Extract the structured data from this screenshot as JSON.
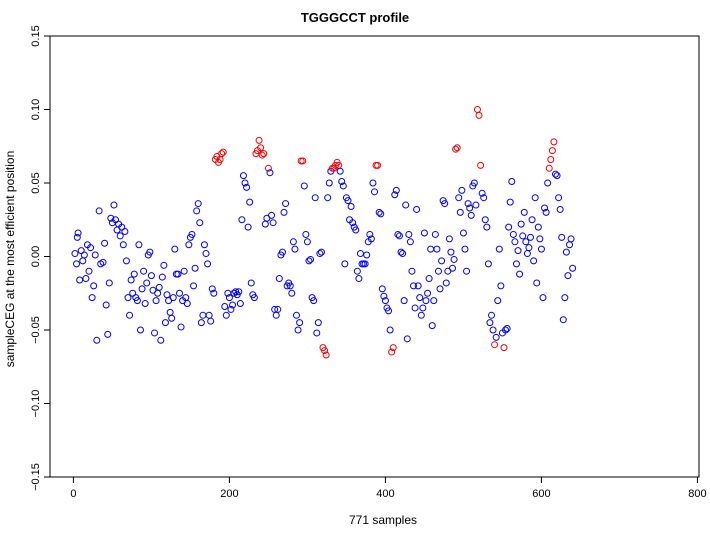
{
  "chart_data": {
    "type": "scatter",
    "title": "TGGGCCT profile",
    "xlabel": "771 samples",
    "ylabel": "sampleCEG at the most efficient position",
    "xlim": [
      -30,
      802
    ],
    "ylim": [
      -0.15,
      0.15
    ],
    "xticks": [
      "0",
      "200",
      "400",
      "600",
      "800"
    ],
    "yticks": [
      "-0.15",
      "-0.10",
      "-0.05",
      "0.00",
      "0.05",
      "0.10",
      "0.15"
    ],
    "xtick_values": [
      0,
      200,
      400,
      600,
      800
    ],
    "ytick_values": [
      -0.15,
      -0.1,
      -0.05,
      0,
      0.05,
      0.1,
      0.15
    ],
    "grid": false,
    "marker": "open-circle",
    "colors": {
      "normal": "#0000ff",
      "extreme": "#ff0000"
    },
    "extreme_threshold": 0.06,
    "n_samples": 771,
    "points": [
      [
        2,
        0.002
      ],
      [
        4,
        -0.005
      ],
      [
        5,
        0.013
      ],
      [
        6,
        0.016
      ],
      [
        8,
        -0.016
      ],
      [
        10,
        0.004
      ],
      [
        12,
        -0.003
      ],
      [
        14,
        0.001
      ],
      [
        16,
        -0.015
      ],
      [
        18,
        0.008
      ],
      [
        20,
        -0.01
      ],
      [
        22,
        0.006
      ],
      [
        24,
        -0.028
      ],
      [
        26,
        -0.02
      ],
      [
        28,
        0.001
      ],
      [
        30,
        -0.057
      ],
      [
        33,
        0.031
      ],
      [
        35,
        -0.005
      ],
      [
        38,
        -0.004
      ],
      [
        40,
        0.009
      ],
      [
        42,
        -0.033
      ],
      [
        44,
        -0.053
      ],
      [
        46,
        -0.018
      ],
      [
        48,
        0.026
      ],
      [
        50,
        0.023
      ],
      [
        52,
        0.035
      ],
      [
        54,
        0.025
      ],
      [
        56,
        0.018
      ],
      [
        58,
        0.022
      ],
      [
        60,
        0.014
      ],
      [
        62,
        0.02
      ],
      [
        64,
        0.008
      ],
      [
        66,
        0.017
      ],
      [
        68,
        -0.003
      ],
      [
        70,
        -0.028
      ],
      [
        72,
        -0.04
      ],
      [
        74,
        -0.016
      ],
      [
        76,
        -0.025
      ],
      [
        78,
        -0.012
      ],
      [
        80,
        -0.028
      ],
      [
        82,
        -0.03
      ],
      [
        84,
        0.008
      ],
      [
        86,
        -0.05
      ],
      [
        88,
        -0.022
      ],
      [
        90,
        -0.01
      ],
      [
        92,
        -0.032
      ],
      [
        94,
        -0.018
      ],
      [
        96,
        0.001
      ],
      [
        98,
        0.003
      ],
      [
        100,
        -0.013
      ],
      [
        102,
        -0.023
      ],
      [
        104,
        -0.052
      ],
      [
        106,
        -0.03
      ],
      [
        108,
        -0.025
      ],
      [
        110,
        -0.021
      ],
      [
        112,
        -0.057
      ],
      [
        114,
        -0.014
      ],
      [
        116,
        -0.006
      ],
      [
        118,
        -0.045
      ],
      [
        120,
        -0.026
      ],
      [
        122,
        -0.03
      ],
      [
        124,
        -0.038
      ],
      [
        126,
        -0.042
      ],
      [
        128,
        -0.028
      ],
      [
        130,
        0.005
      ],
      [
        132,
        -0.012
      ],
      [
        134,
        -0.012
      ],
      [
        136,
        -0.025
      ],
      [
        138,
        -0.048
      ],
      [
        140,
        -0.03
      ],
      [
        142,
        -0.01
      ],
      [
        144,
        -0.028
      ],
      [
        146,
        -0.032
      ],
      [
        148,
        0.008
      ],
      [
        150,
        0.013
      ],
      [
        152,
        0.015
      ],
      [
        154,
        -0.02
      ],
      [
        156,
        -0.008
      ],
      [
        158,
        0.031
      ],
      [
        160,
        0.036
      ],
      [
        162,
        0.023
      ],
      [
        164,
        -0.045
      ],
      [
        166,
        -0.04
      ],
      [
        168,
        0.008
      ],
      [
        170,
        0.002
      ],
      [
        172,
        -0.005
      ],
      [
        174,
        -0.04
      ],
      [
        176,
        -0.044
      ],
      [
        178,
        -0.022
      ],
      [
        180,
        -0.025
      ],
      [
        182,
        0.066
      ],
      [
        184,
        0.068
      ],
      [
        186,
        0.064
      ],
      [
        188,
        0.066
      ],
      [
        190,
        0.07
      ],
      [
        192,
        0.071
      ],
      [
        194,
        -0.034
      ],
      [
        196,
        -0.04
      ],
      [
        198,
        -0.025
      ],
      [
        200,
        -0.028
      ],
      [
        202,
        -0.036
      ],
      [
        204,
        -0.033
      ],
      [
        206,
        -0.025
      ],
      [
        208,
        -0.024
      ],
      [
        210,
        -0.026
      ],
      [
        212,
        -0.024
      ],
      [
        214,
        -0.032
      ],
      [
        216,
        0.025
      ],
      [
        218,
        0.055
      ],
      [
        220,
        0.05
      ],
      [
        222,
        0.047
      ],
      [
        224,
        0.02
      ],
      [
        226,
        0.037
      ],
      [
        228,
        -0.018
      ],
      [
        230,
        -0.026
      ],
      [
        232,
        -0.028
      ],
      [
        234,
        0.07
      ],
      [
        236,
        0.072
      ],
      [
        238,
        0.079
      ],
      [
        240,
        0.074
      ],
      [
        242,
        0.069
      ],
      [
        244,
        0.07
      ],
      [
        246,
        0.022
      ],
      [
        248,
        0.026
      ],
      [
        250,
        0.06
      ],
      [
        252,
        0.057
      ],
      [
        254,
        0.028
      ],
      [
        256,
        0.023
      ],
      [
        258,
        -0.036
      ],
      [
        260,
        -0.04
      ],
      [
        262,
        -0.036
      ],
      [
        264,
        -0.015
      ],
      [
        266,
        0.001
      ],
      [
        268,
        0.003
      ],
      [
        270,
        0.03
      ],
      [
        272,
        0.036
      ],
      [
        274,
        -0.02
      ],
      [
        276,
        -0.018
      ],
      [
        278,
        -0.02
      ],
      [
        280,
        -0.025
      ],
      [
        282,
        0.01
      ],
      [
        284,
        0.005
      ],
      [
        286,
        -0.04
      ],
      [
        288,
        -0.05
      ],
      [
        290,
        -0.045
      ],
      [
        292,
        0.065
      ],
      [
        294,
        0.065
      ],
      [
        296,
        0.048
      ],
      [
        298,
        0.015
      ],
      [
        300,
        0.01
      ],
      [
        302,
        -0.003
      ],
      [
        304,
        -0.002
      ],
      [
        306,
        -0.028
      ],
      [
        308,
        -0.03
      ],
      [
        310,
        0.04
      ],
      [
        312,
        -0.052
      ],
      [
        314,
        -0.045
      ],
      [
        316,
        0.002
      ],
      [
        318,
        0.003
      ],
      [
        320,
        -0.062
      ],
      [
        322,
        -0.064
      ],
      [
        324,
        -0.067
      ],
      [
        326,
        0.04
      ],
      [
        328,
        0.05
      ],
      [
        330,
        0.058
      ],
      [
        332,
        0.06
      ],
      [
        334,
        0.06
      ],
      [
        336,
        0.062
      ],
      [
        338,
        0.064
      ],
      [
        340,
        0.062
      ],
      [
        342,
        0.058
      ],
      [
        344,
        0.051
      ],
      [
        346,
        0.048
      ],
      [
        348,
        -0.005
      ],
      [
        350,
        0.04
      ],
      [
        352,
        0.038
      ],
      [
        354,
        0.025
      ],
      [
        356,
        0.034
      ],
      [
        358,
        0.023
      ],
      [
        360,
        0.02
      ],
      [
        362,
        0.018
      ],
      [
        364,
        -0.01
      ],
      [
        366,
        -0.015
      ],
      [
        368,
        0.002
      ],
      [
        370,
        -0.005
      ],
      [
        372,
        -0.005
      ],
      [
        374,
        -0.005
      ],
      [
        376,
        0.001
      ],
      [
        378,
        0.01
      ],
      [
        380,
        0.015
      ],
      [
        382,
        0.012
      ],
      [
        384,
        0.05
      ],
      [
        386,
        0.044
      ],
      [
        388,
        0.062
      ],
      [
        390,
        0.062
      ],
      [
        392,
        0.03
      ],
      [
        394,
        0.029
      ],
      [
        396,
        -0.022
      ],
      [
        398,
        -0.027
      ],
      [
        400,
        -0.03
      ],
      [
        402,
        -0.035
      ],
      [
        404,
        -0.037
      ],
      [
        406,
        -0.05
      ],
      [
        408,
        -0.065
      ],
      [
        410,
        -0.062
      ],
      [
        412,
        0.042
      ],
      [
        414,
        0.045
      ],
      [
        416,
        0.015
      ],
      [
        418,
        0.014
      ],
      [
        420,
        0.003
      ],
      [
        422,
        0.002
      ],
      [
        424,
        -0.03
      ],
      [
        426,
        0.035
      ],
      [
        428,
        -0.056
      ],
      [
        430,
        0.015
      ],
      [
        432,
        0.01
      ],
      [
        434,
        -0.01
      ],
      [
        436,
        -0.02
      ],
      [
        438,
        -0.035
      ],
      [
        440,
        0.032
      ],
      [
        442,
        -0.02
      ],
      [
        444,
        -0.028
      ],
      [
        446,
        -0.04
      ],
      [
        448,
        -0.035
      ],
      [
        450,
        0.016
      ],
      [
        452,
        -0.03
      ],
      [
        454,
        -0.025
      ],
      [
        456,
        -0.015
      ],
      [
        458,
        0.005
      ],
      [
        460,
        -0.047
      ],
      [
        462,
        -0.03
      ],
      [
        464,
        0.015
      ],
      [
        466,
        0.005
      ],
      [
        468,
        -0.01
      ],
      [
        470,
        -0.022
      ],
      [
        472,
        -0.003
      ],
      [
        474,
        0.038
      ],
      [
        476,
        0.036
      ],
      [
        478,
        -0.018
      ],
      [
        480,
        -0.01
      ],
      [
        482,
        0.012
      ],
      [
        484,
        0.003
      ],
      [
        486,
        -0.008
      ],
      [
        488,
        -0.002
      ],
      [
        490,
        0.073
      ],
      [
        492,
        0.074
      ],
      [
        494,
        0.04
      ],
      [
        496,
        0.03
      ],
      [
        498,
        0.045
      ],
      [
        500,
        0.016
      ],
      [
        502,
        0.005
      ],
      [
        504,
        -0.01
      ],
      [
        506,
        0.036
      ],
      [
        508,
        0.033
      ],
      [
        510,
        0.028
      ],
      [
        512,
        0.048
      ],
      [
        514,
        0.05
      ],
      [
        516,
        0.035
      ],
      [
        518,
        0.1
      ],
      [
        520,
        0.096
      ],
      [
        522,
        0.062
      ],
      [
        524,
        0.043
      ],
      [
        526,
        0.04
      ],
      [
        528,
        0.025
      ],
      [
        530,
        0.02
      ],
      [
        532,
        -0.005
      ],
      [
        534,
        -0.045
      ],
      [
        536,
        -0.04
      ],
      [
        538,
        -0.05
      ],
      [
        540,
        -0.06
      ],
      [
        542,
        -0.055
      ],
      [
        544,
        -0.03
      ],
      [
        546,
        0.005
      ],
      [
        548,
        -0.02
      ],
      [
        550,
        -0.052
      ],
      [
        552,
        -0.062
      ],
      [
        554,
        -0.05
      ],
      [
        556,
        -0.049
      ],
      [
        558,
        0.02
      ],
      [
        560,
        0.037
      ],
      [
        562,
        0.051
      ],
      [
        564,
        0.015
      ],
      [
        566,
        0.01
      ],
      [
        568,
        -0.005
      ],
      [
        570,
        0.004
      ],
      [
        572,
        -0.012
      ],
      [
        574,
        0.022
      ],
      [
        576,
        0.014
      ],
      [
        578,
        0.03
      ],
      [
        580,
        0.01
      ],
      [
        582,
        0.002
      ],
      [
        584,
        0.006
      ],
      [
        586,
        0.013
      ],
      [
        588,
        0.025
      ],
      [
        590,
        -0.003
      ],
      [
        592,
        0.04
      ],
      [
        594,
        -0.018
      ],
      [
        596,
        0.02
      ],
      [
        598,
        0.012
      ],
      [
        600,
        0.005
      ],
      [
        602,
        -0.028
      ],
      [
        604,
        0.033
      ],
      [
        606,
        0.03
      ],
      [
        608,
        0.05
      ],
      [
        610,
        0.06
      ],
      [
        612,
        0.066
      ],
      [
        614,
        0.072
      ],
      [
        616,
        0.078
      ],
      [
        618,
        0.056
      ],
      [
        620,
        0.055
      ],
      [
        622,
        0.04
      ],
      [
        624,
        0.032
      ],
      [
        626,
        0.013
      ],
      [
        628,
        -0.043
      ],
      [
        630,
        -0.028
      ],
      [
        632,
        0.003
      ],
      [
        634,
        -0.013
      ],
      [
        636,
        0.008
      ],
      [
        638,
        0.012
      ],
      [
        640,
        -0.008
      ]
    ]
  }
}
